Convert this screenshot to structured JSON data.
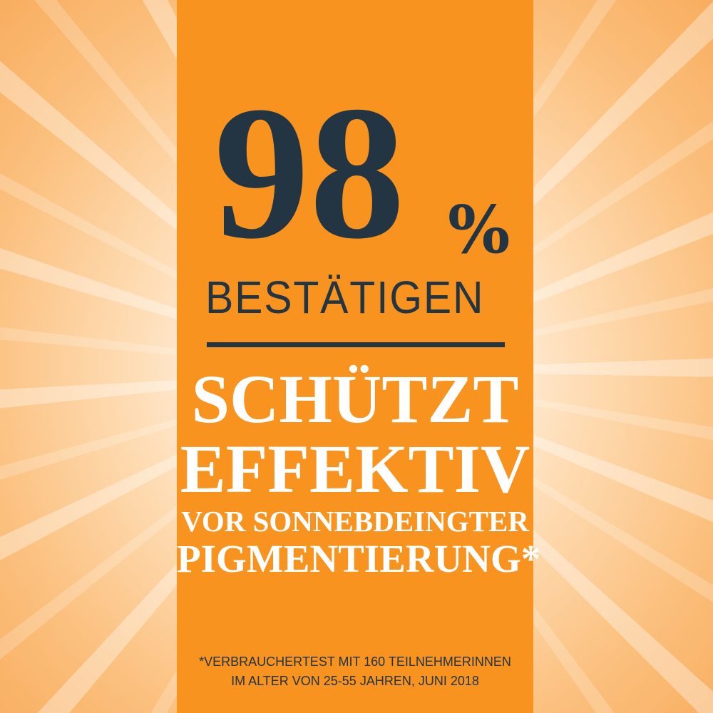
{
  "colors": {
    "panel": "#f7931e",
    "navy": "#233443",
    "white": "#ffffff",
    "background": "#fdd4a4"
  },
  "headline": {
    "number": "98",
    "percent": "%",
    "confirm": "BESTÄTIGEN"
  },
  "claim": {
    "line1": "SCHÜTZT",
    "line2": "EFFEKTIV",
    "line3": "VOR SONNEBDEINGTER",
    "line4": "PIGMENTIERUNG*"
  },
  "footnote": {
    "line1": "*VERBRAUCHERTEST MIT 160 TEILNEHMERINNEN",
    "line2": "IM ALTER VON 25-55 JAHREN, JUNI 2018"
  }
}
